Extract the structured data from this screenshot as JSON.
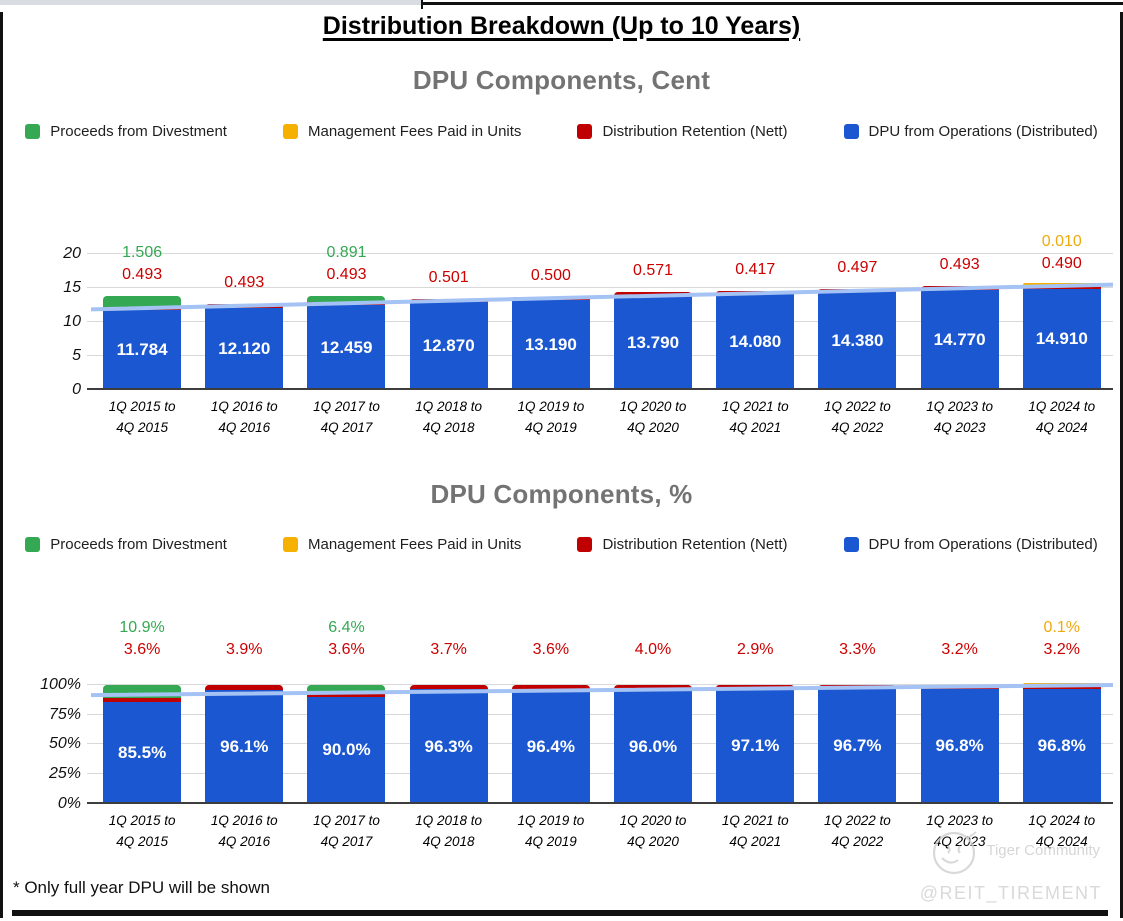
{
  "title": "Distribution Breakdown (Up to 10 Years)",
  "footnote": "* Only full year DPU will be shown",
  "watermark": {
    "community": "Tiger Community",
    "handle": "@REIT_TIREMENT"
  },
  "colors": {
    "blue": "#1b57d0",
    "red": "#c00000",
    "green": "#34a853",
    "yellow": "#f5b000",
    "trend": "#a4c2f4",
    "grid": "#d9d9d9",
    "axis": "#3d3d3d",
    "chart_title": "#737373"
  },
  "chart_data": [
    {
      "type": "bar",
      "stacked": true,
      "title": "DPU Components, Cent",
      "ylabel": "",
      "xlabel": "",
      "ylim": [
        0,
        20
      ],
      "grid": true,
      "legend_position": "top",
      "legend": [
        {
          "label": "Proceeds from Divestment",
          "color": "#34a853"
        },
        {
          "label": "Management Fees Paid in Units",
          "color": "#f5b000"
        },
        {
          "label": "Distribution Retention (Nett)",
          "color": "#c00000"
        },
        {
          "label": "DPU from Operations (Distributed)",
          "color": "#1b57d0"
        }
      ],
      "yticks": [
        {
          "v": 0,
          "label": "0"
        },
        {
          "v": 5,
          "label": "5"
        },
        {
          "v": 10,
          "label": "10"
        },
        {
          "v": 15,
          "label": "15"
        },
        {
          "v": 20,
          "label": "20"
        }
      ],
      "categories": [
        [
          "1Q 2015 to",
          "4Q 2015"
        ],
        [
          "1Q 2016 to",
          "4Q 2016"
        ],
        [
          "1Q 2017 to",
          "4Q 2017"
        ],
        [
          "1Q 2018 to",
          "4Q 2018"
        ],
        [
          "1Q 2019 to",
          "4Q 2019"
        ],
        [
          "1Q 2020 to",
          "4Q 2020"
        ],
        [
          "1Q 2021 to",
          "4Q 2021"
        ],
        [
          "1Q 2022 to",
          "4Q 2022"
        ],
        [
          "1Q 2023 to",
          "4Q 2023"
        ],
        [
          "1Q 2024 to",
          "4Q 2024"
        ]
      ],
      "series": [
        {
          "name": "DPU from Operations (Distributed)",
          "color": "#1b57d0",
          "label_slot": "inside",
          "label_color": "#ffffff",
          "values": [
            11.784,
            12.12,
            12.459,
            12.87,
            13.19,
            13.79,
            14.08,
            14.38,
            14.77,
            14.91
          ],
          "labels": [
            "11.784",
            "12.120",
            "12.459",
            "12.870",
            "13.190",
            "13.790",
            "14.080",
            "14.380",
            "14.770",
            "14.910"
          ]
        },
        {
          "name": "Distribution Retention (Nett)",
          "color": "#c00000",
          "label_slot": "above1",
          "label_color": "#cc0000",
          "values": [
            0.493,
            0.493,
            0.493,
            0.501,
            0.5,
            0.571,
            0.417,
            0.497,
            0.493,
            0.49
          ],
          "labels": [
            "0.493",
            "0.493",
            "0.493",
            "0.501",
            "0.500",
            "0.571",
            "0.417",
            "0.497",
            "0.493",
            "0.490"
          ]
        },
        {
          "name": "Proceeds from Divestment",
          "color": "#34a853",
          "label_slot": "above2",
          "label_color": "#34a853",
          "values": [
            1.506,
            0,
            0.891,
            0,
            0,
            0,
            0,
            0,
            0,
            0
          ],
          "labels": [
            "1.506",
            "",
            "0.891",
            "",
            "",
            "",
            "",
            "",
            "",
            ""
          ]
        },
        {
          "name": "Management Fees Paid in Units",
          "color": "#f5b000",
          "label_slot": "above2",
          "label_color": "#efa90c",
          "values": [
            0,
            0,
            0,
            0,
            0,
            0,
            0,
            0,
            0,
            0.01
          ],
          "labels": [
            "",
            "",
            "",
            "",
            "",
            "",
            "",
            "",
            "",
            "0.010"
          ]
        }
      ],
      "trendline": {
        "color": "#a4c2f4",
        "start": 11.85,
        "end": 15.5
      }
    },
    {
      "type": "bar",
      "stacked": true,
      "title": "DPU Components, %",
      "ylabel": "",
      "xlabel": "",
      "ylim": [
        0,
        100
      ],
      "grid": true,
      "legend_position": "top",
      "legend": [
        {
          "label": "Proceeds from Divestment",
          "color": "#34a853"
        },
        {
          "label": "Management Fees Paid in Units",
          "color": "#f5b000"
        },
        {
          "label": "Distribution Retention (Nett)",
          "color": "#c00000"
        },
        {
          "label": "DPU from Operations (Distributed)",
          "color": "#1b57d0"
        }
      ],
      "yticks": [
        {
          "v": 0,
          "label": "0%"
        },
        {
          "v": 25,
          "label": "25%"
        },
        {
          "v": 50,
          "label": "50%"
        },
        {
          "v": 75,
          "label": "75%"
        },
        {
          "v": 100,
          "label": "100%"
        }
      ],
      "categories": [
        [
          "1Q 2015 to",
          "4Q 2015"
        ],
        [
          "1Q 2016 to",
          "4Q 2016"
        ],
        [
          "1Q 2017 to",
          "4Q 2017"
        ],
        [
          "1Q 2018 to",
          "4Q 2018"
        ],
        [
          "1Q 2019 to",
          "4Q 2019"
        ],
        [
          "1Q 2020 to",
          "4Q 2020"
        ],
        [
          "1Q 2021 to",
          "4Q 2021"
        ],
        [
          "1Q 2022 to",
          "4Q 2022"
        ],
        [
          "1Q 2023 to",
          "4Q 2023"
        ],
        [
          "1Q 2024 to",
          "4Q 2024"
        ]
      ],
      "series": [
        {
          "name": "DPU from Operations (Distributed)",
          "color": "#1b57d0",
          "label_slot": "inside",
          "label_color": "#ffffff",
          "values": [
            85.5,
            96.1,
            90.0,
            96.3,
            96.4,
            96.0,
            97.1,
            96.7,
            96.8,
            96.8
          ],
          "labels": [
            "85.5%",
            "96.1%",
            "90.0%",
            "96.3%",
            "96.4%",
            "96.0%",
            "97.1%",
            "96.7%",
            "96.8%",
            "96.8%"
          ]
        },
        {
          "name": "Distribution Retention (Nett)",
          "color": "#c00000",
          "label_slot": "above1",
          "label_color": "#cc0000",
          "values": [
            3.6,
            3.9,
            3.6,
            3.7,
            3.6,
            4.0,
            2.9,
            3.3,
            3.2,
            3.2
          ],
          "labels": [
            "3.6%",
            "3.9%",
            "3.6%",
            "3.7%",
            "3.6%",
            "4.0%",
            "2.9%",
            "3.3%",
            "3.2%",
            "3.2%"
          ]
        },
        {
          "name": "Proceeds from Divestment",
          "color": "#34a853",
          "label_slot": "above2",
          "label_color": "#34a853",
          "values": [
            10.9,
            0,
            6.4,
            0,
            0,
            0,
            0,
            0,
            0,
            0
          ],
          "labels": [
            "10.9%",
            "",
            "6.4%",
            "",
            "",
            "",
            "",
            "",
            "",
            ""
          ]
        },
        {
          "name": "Management Fees Paid in Units",
          "color": "#f5b000",
          "label_slot": "above2",
          "label_color": "#efa90c",
          "values": [
            0,
            0,
            0,
            0,
            0,
            0,
            0,
            0,
            0,
            0.1
          ],
          "labels": [
            "",
            "",
            "",
            "",
            "",
            "",
            "",
            "",
            "",
            "0.1%"
          ]
        }
      ],
      "trendline": {
        "color": "#a4c2f4",
        "start": 91.5,
        "end": 100.0
      }
    }
  ]
}
